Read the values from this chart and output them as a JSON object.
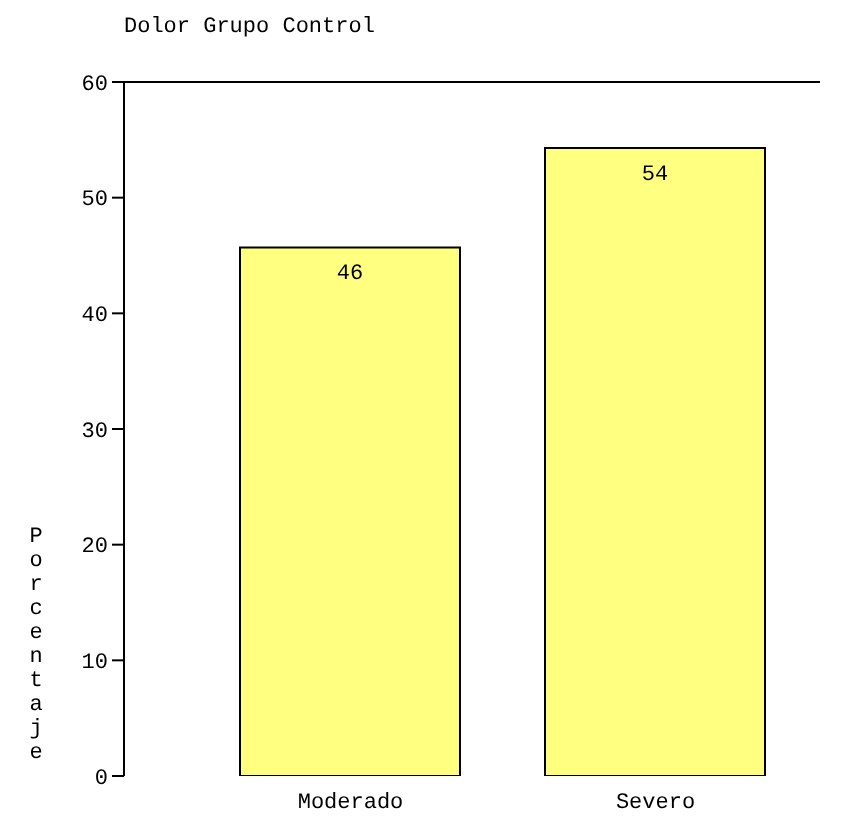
{
  "chart_data": {
    "type": "bar",
    "title": "Dolor Grupo Control",
    "ylabel": "Porcentaje",
    "categories": [
      "Moderado",
      "Severo"
    ],
    "values": [
      45.7,
      54.3
    ],
    "value_labels": [
      "46",
      "54"
    ],
    "color": "#ffff80",
    "ylim": [
      0,
      60
    ],
    "yticks": [
      0,
      10,
      20,
      30,
      40,
      50,
      60
    ],
    "grid": false,
    "legend": false
  }
}
